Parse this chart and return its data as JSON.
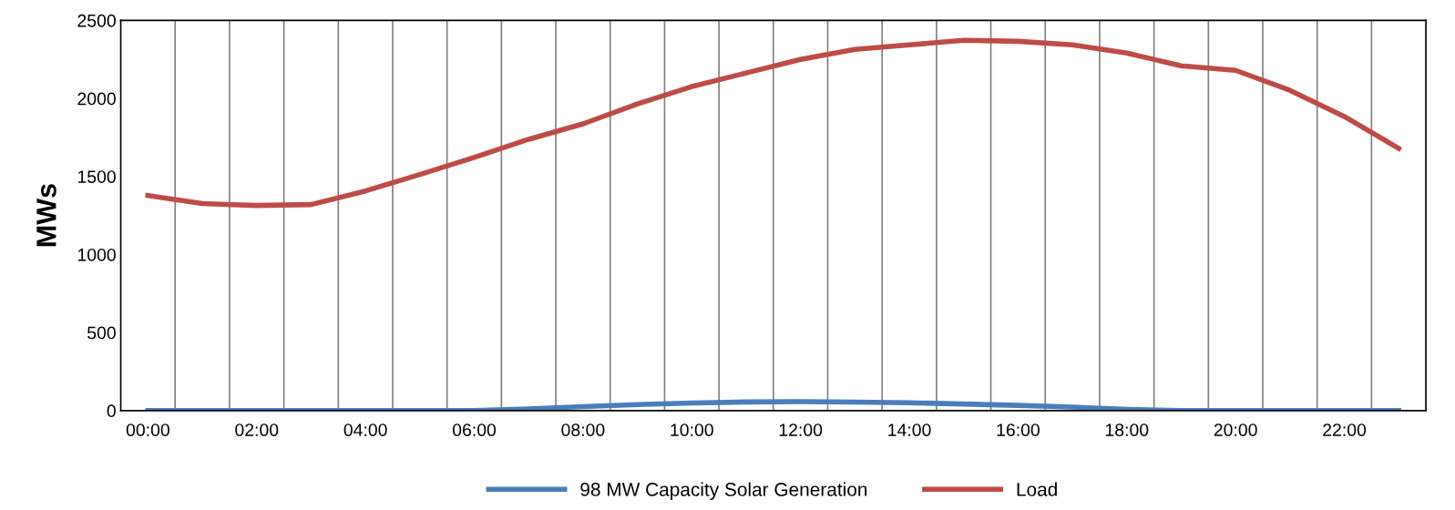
{
  "chart_data": {
    "type": "line",
    "ylabel": "MWs",
    "categories": [
      "00:00",
      null,
      "02:00",
      null,
      "04:00",
      null,
      "06:00",
      null,
      "08:00",
      null,
      "10:00",
      null,
      "12:00",
      null,
      "14:00",
      null,
      "16:00",
      null,
      "18:00",
      null,
      "20:00",
      null,
      "22:00",
      null
    ],
    "series": [
      {
        "name": "98 MW Capacity Solar Generation",
        "color": "#4a7ebb",
        "values": [
          0,
          0,
          0,
          0,
          0,
          0,
          0,
          10,
          25,
          38,
          48,
          55,
          57,
          54,
          50,
          42,
          33,
          22,
          8,
          0,
          0,
          0,
          0,
          0
        ]
      },
      {
        "name": "Load",
        "color": "#be4b48",
        "values": [
          1378,
          1326,
          1314,
          1320,
          1407,
          1512,
          1622,
          1738,
          1837,
          1965,
          2076,
          2163,
          2250,
          2314,
          2343,
          2372,
          2366,
          2343,
          2291,
          2209,
          2180,
          2052,
          1884,
          1680
        ]
      }
    ],
    "ylim": [
      0,
      2500
    ],
    "yticks": [
      0,
      500,
      1000,
      1500,
      2000,
      2500
    ],
    "grid": "x",
    "legend": "bottom",
    "marker": "none",
    "line_style": "solid"
  }
}
